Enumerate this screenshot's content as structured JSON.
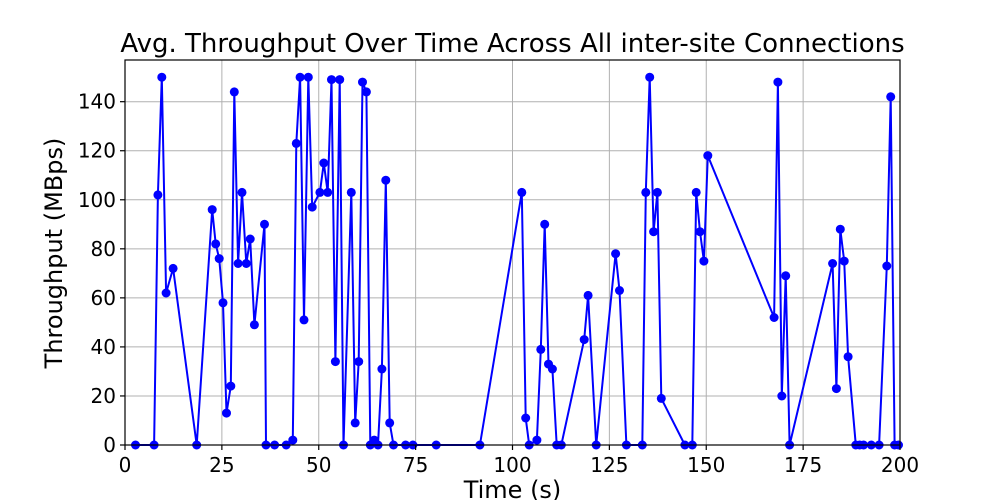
{
  "chart_data": {
    "type": "line",
    "title": "Avg. Throughput Over Time Across All inter-site Connections",
    "xlabel": "Time (s)",
    "ylabel": "Throughput (MBps)",
    "xlim": [
      0,
      200
    ],
    "ylim": [
      0,
      157
    ],
    "xticks": [
      0,
      25,
      50,
      75,
      100,
      125,
      150,
      175,
      200
    ],
    "yticks": [
      0,
      20,
      40,
      60,
      80,
      100,
      120,
      140
    ],
    "grid": true,
    "color": "#0000ff",
    "series": [
      {
        "x": [
          2.7,
          7.5,
          8.5,
          9.5,
          10.6,
          12.4,
          18.5,
          22.5,
          23.4,
          24.3,
          25.3,
          26.2,
          27.3,
          28.2,
          29.2,
          30.2,
          31.3,
          32.3,
          33.4,
          36.0,
          36.4,
          38.6,
          41.6,
          43.3,
          44.2,
          45.2,
          46.2,
          47.3,
          48.3,
          50.3,
          51.3,
          52.3,
          53.3,
          54.3,
          55.4,
          56.4,
          58.4,
          59.4,
          60.3,
          61.3,
          62.3,
          63.3,
          64.3,
          65.3,
          66.3,
          67.3,
          68.3,
          69.3,
          72.4,
          74.3,
          80.3,
          91.6,
          102.4,
          103.4,
          104.3,
          106.3,
          107.3,
          108.3,
          109.3,
          110.3,
          111.4,
          112.6,
          118.5,
          119.5,
          121.6,
          126.6,
          127.6,
          129.4,
          133.5,
          134.4,
          135.4,
          136.4,
          137.4,
          138.4,
          144.5,
          146.4,
          147.4,
          148.4,
          149.4,
          150.4,
          167.5,
          168.5,
          169.5,
          170.5,
          171.5,
          182.6,
          183.6,
          184.6,
          185.6,
          186.6,
          188.6,
          189.6,
          190.6,
          192.6,
          194.6,
          196.6,
          197.6,
          198.6,
          199.6
        ],
        "y": [
          0,
          0,
          102,
          150,
          62,
          72,
          0,
          96,
          82,
          76,
          58,
          13,
          24,
          144,
          74,
          103,
          74,
          84,
          49,
          90,
          0,
          0,
          0,
          2,
          123,
          150,
          51,
          150,
          97,
          103,
          115,
          103,
          149,
          34,
          149,
          0,
          103,
          9,
          34,
          148,
          144,
          0,
          2,
          0,
          31,
          108,
          9,
          0,
          0,
          0,
          0,
          0,
          103,
          11,
          0,
          2,
          39,
          90,
          33,
          31,
          0,
          0,
          43,
          61,
          0,
          78,
          63,
          0,
          0,
          103,
          150,
          87,
          103,
          19,
          0,
          0,
          103,
          87,
          75,
          118,
          52,
          148,
          20,
          69,
          0,
          74,
          23,
          88,
          75,
          36,
          0,
          0,
          0,
          0,
          0,
          73,
          142,
          0,
          0
        ]
      }
    ]
  }
}
